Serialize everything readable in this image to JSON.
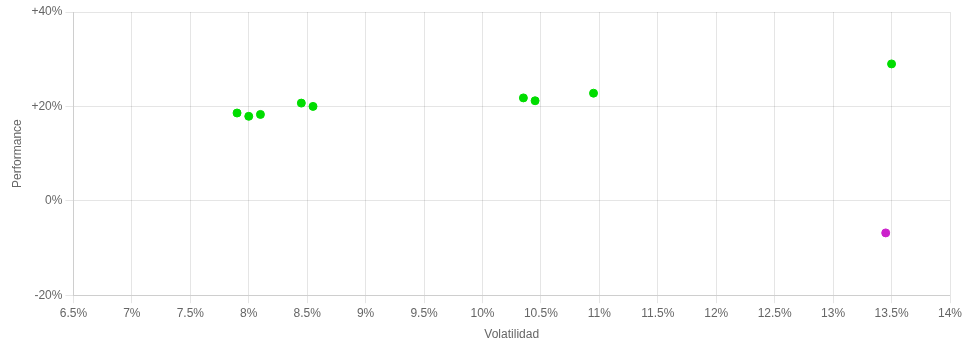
{
  "chart_data": {
    "type": "scatter",
    "xlabel": "Volatilidad",
    "ylabel": "Performance",
    "series": [
      {
        "color": "#00dd00",
        "x": [
          0.079,
          0.08,
          0.081,
          0.0845,
          0.0855,
          0.1035,
          0.1045,
          0.1095,
          0.135
        ],
        "values": [
          0.186,
          0.179,
          0.183,
          0.207,
          0.2,
          0.218,
          0.212,
          0.228,
          0.29
        ]
      },
      {
        "color": "#cc22cc",
        "x": [
          0.1345
        ],
        "values": [
          -0.068
        ]
      }
    ],
    "xlim": [
      0.065,
      0.14
    ],
    "xticks": [
      {
        "value": 0.065,
        "label": "6.5%"
      },
      {
        "value": 0.07,
        "label": "7%"
      },
      {
        "value": 0.075,
        "label": "7.5%"
      },
      {
        "value": 0.08,
        "label": "8%"
      },
      {
        "value": 0.085,
        "label": "8.5%"
      },
      {
        "value": 0.09,
        "label": "9%"
      },
      {
        "value": 0.095,
        "label": "9.5%"
      },
      {
        "value": 0.1,
        "label": "10%"
      },
      {
        "value": 0.105,
        "label": "10.5%"
      },
      {
        "value": 0.11,
        "label": "11%"
      },
      {
        "value": 0.115,
        "label": "11.5%"
      },
      {
        "value": 0.12,
        "label": "12%"
      },
      {
        "value": 0.125,
        "label": "12.5%"
      },
      {
        "value": 0.13,
        "label": "13%"
      },
      {
        "value": 0.135,
        "label": "13.5%"
      },
      {
        "value": 0.14,
        "label": "14%"
      }
    ],
    "ylim": [
      -0.2,
      0.4
    ],
    "yticks": [
      {
        "value": -0.2,
        "label": "-20%"
      },
      {
        "value": 0.0,
        "label": "0%"
      },
      {
        "value": 0.2,
        "label": "+20%"
      },
      {
        "value": 0.4,
        "label": "+40%"
      }
    ],
    "grid": true
  }
}
